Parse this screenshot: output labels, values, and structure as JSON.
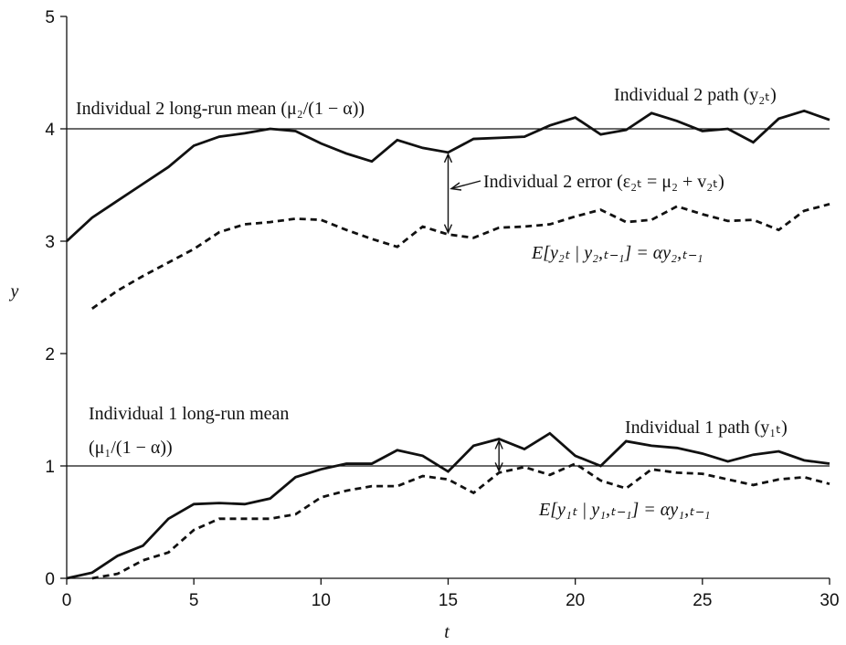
{
  "chart_data": {
    "type": "line",
    "xlabel": "t",
    "ylabel": "y",
    "xlim": [
      0,
      30
    ],
    "ylim": [
      0,
      5
    ],
    "x_ticks": [
      0,
      5,
      10,
      15,
      20,
      25,
      30
    ],
    "y_ticks": [
      0,
      1,
      2,
      3,
      4,
      5
    ],
    "grid": false,
    "reference_lines": [
      {
        "y": 4,
        "label": "Individual 2 long-run mean (μ₂/(1 − α))"
      },
      {
        "y": 1,
        "label": "Individual 1 long-run mean (μ₁/(1 − α))"
      }
    ],
    "series": [
      {
        "name": "Individual 2 path (y₂ₜ)",
        "style": "solid",
        "x": [
          0,
          1,
          2,
          3,
          4,
          5,
          6,
          7,
          8,
          9,
          10,
          11,
          12,
          13,
          14,
          15,
          16,
          17,
          18,
          19,
          20,
          21,
          22,
          23,
          24,
          25,
          26,
          27,
          28,
          29,
          30
        ],
        "values": [
          3.0,
          3.21,
          3.36,
          3.51,
          3.66,
          3.85,
          3.93,
          3.96,
          4.0,
          3.98,
          3.87,
          3.78,
          3.71,
          3.9,
          3.83,
          3.79,
          3.91,
          3.92,
          3.93,
          4.03,
          4.1,
          3.95,
          3.99,
          4.14,
          4.07,
          3.98,
          4.0,
          3.88,
          4.09,
          4.16,
          4.08
        ]
      },
      {
        "name": "E[y₂ₜ | y₂,ₜ₋₁] = αy₂,ₜ₋₁",
        "style": "dashed",
        "x": [
          1,
          2,
          3,
          4,
          5,
          6,
          7,
          8,
          9,
          10,
          11,
          12,
          13,
          14,
          15,
          16,
          17,
          18,
          19,
          20,
          21,
          22,
          23,
          24,
          25,
          26,
          27,
          28,
          29,
          30
        ],
        "values": [
          2.4,
          2.56,
          2.69,
          2.81,
          2.93,
          3.08,
          3.15,
          3.17,
          3.2,
          3.19,
          3.1,
          3.02,
          2.95,
          3.13,
          3.06,
          3.03,
          3.12,
          3.13,
          3.15,
          3.22,
          3.28,
          3.17,
          3.19,
          3.31,
          3.24,
          3.18,
          3.19,
          3.1,
          3.27,
          3.33
        ]
      },
      {
        "name": "Individual 1 path (y₁ₜ)",
        "style": "solid",
        "x": [
          0,
          1,
          2,
          3,
          4,
          5,
          6,
          7,
          8,
          9,
          10,
          11,
          12,
          13,
          14,
          15,
          16,
          17,
          18,
          19,
          20,
          21,
          22,
          23,
          24,
          25,
          26,
          27,
          28,
          29,
          30
        ],
        "values": [
          0.0,
          0.05,
          0.2,
          0.29,
          0.53,
          0.66,
          0.67,
          0.66,
          0.71,
          0.9,
          0.97,
          1.02,
          1.02,
          1.14,
          1.09,
          0.95,
          1.18,
          1.24,
          1.15,
          1.29,
          1.09,
          1.0,
          1.22,
          1.18,
          1.16,
          1.11,
          1.04,
          1.1,
          1.13,
          1.05,
          1.02
        ]
      },
      {
        "name": "E[y₁ₜ | y₁,ₜ₋₁] = αy₁,ₜ₋₁",
        "style": "dashed",
        "x": [
          1,
          2,
          3,
          4,
          5,
          6,
          7,
          8,
          9,
          10,
          11,
          12,
          13,
          14,
          15,
          16,
          17,
          18,
          19,
          20,
          21,
          22,
          23,
          24,
          25,
          26,
          27,
          28,
          29,
          30
        ],
        "values": [
          0.0,
          0.04,
          0.16,
          0.23,
          0.43,
          0.53,
          0.53,
          0.53,
          0.57,
          0.72,
          0.78,
          0.82,
          0.82,
          0.91,
          0.88,
          0.76,
          0.94,
          0.99,
          0.92,
          1.02,
          0.87,
          0.8,
          0.97,
          0.94,
          0.93,
          0.88,
          0.83,
          0.88,
          0.9,
          0.84
        ]
      }
    ],
    "annotations": {
      "mean2_label": "Individual 2 long-run mean (μ₂/(1 − α))",
      "path2_label": "Individual 2 path (y₂ₜ)",
      "error2_label": "Individual 2 error (ε₂ₜ = μ₂ + v₂ₜ)",
      "expect2_label": "E[y₂ₜ | y₂,ₜ₋₁] = αy₂,ₜ₋₁",
      "mean1_label_line1": "Individual 1 long-run mean",
      "mean1_label_line2": "(μ₁/(1 − α))",
      "path1_label": "Individual 1 path (y₁ₜ)",
      "expect1_label": "E[y₁ₜ | y₁,ₜ₋₁] = αy₁,ₜ₋₁"
    }
  }
}
